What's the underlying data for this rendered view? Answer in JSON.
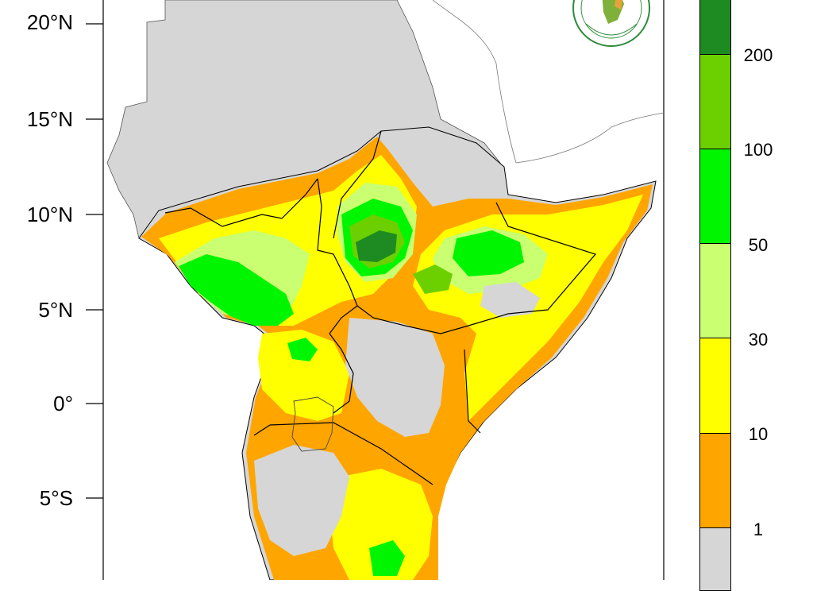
{
  "map": {
    "lat_ticks": [
      {
        "label": "20°N"
      },
      {
        "label": "15°N"
      },
      {
        "label": "10°N"
      },
      {
        "label": "5°N"
      },
      {
        "label": "0°"
      },
      {
        "label": "5°S"
      }
    ]
  },
  "legend": {
    "labels": [
      "200",
      "100",
      "50",
      "30",
      "10",
      "1"
    ],
    "colors": [
      "#1e8b22",
      "#6cd000",
      "#00f500",
      "#c9ff70",
      "#ffff00",
      "#ffa500",
      "#d6d6d6"
    ]
  },
  "colors": {
    "land_no_data": "#d6d6d6",
    "rain_1_10": "#ffa500",
    "rain_10_30": "#ffff00",
    "rain_30_50": "#c9ff70",
    "rain_50_100": "#00f500",
    "rain_100_200": "#6cd000",
    "rain_200_plus": "#1e8b22"
  }
}
